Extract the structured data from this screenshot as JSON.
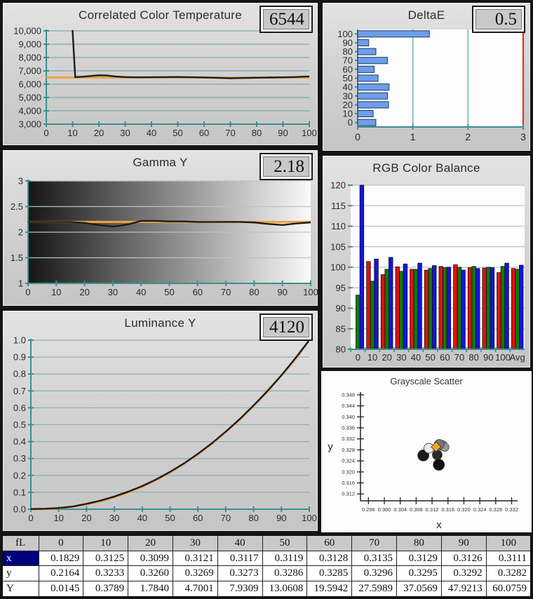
{
  "colors": {
    "axis_teal": "#3E8E8E",
    "target_orange": "#F2A33C",
    "measured_black": "#1C1C1C",
    "limit_red": "#E03434",
    "deltae_bar_blue": "#6D9EE8",
    "selected_row_navy": "#00007E"
  },
  "chart_data": [
    {
      "id": "cct",
      "type": "line",
      "title": "Correlated Color Temperature",
      "value": "6544",
      "xlabel": "",
      "ylabel": "",
      "xlim": [
        0,
        100
      ],
      "ylim": [
        3000,
        10000
      ],
      "xticks": [
        0,
        10,
        20,
        30,
        40,
        50,
        60,
        70,
        80,
        90,
        100
      ],
      "yticks": [
        {
          "v": 3000,
          "label": "3,000"
        },
        {
          "v": 4000,
          "label": "4,000"
        },
        {
          "v": 5000,
          "label": "5,000"
        },
        {
          "v": 6000,
          "label": "6,000"
        },
        {
          "v": 7000,
          "label": "7,000"
        },
        {
          "v": 8000,
          "label": "8,000"
        },
        {
          "v": 9000,
          "label": "9,000"
        },
        {
          "v": 10000,
          "label": "10,000"
        }
      ],
      "series": [
        {
          "name": "target",
          "color": "#F2A33C",
          "width": 3,
          "points": [
            [
              0,
              6500
            ],
            [
              100,
              6500
            ]
          ]
        },
        {
          "name": "measured",
          "color": "#1C1C1C",
          "width": 2.4,
          "points": [
            [
              10,
              10000
            ],
            [
              11,
              6530
            ],
            [
              14,
              6560
            ],
            [
              17,
              6615
            ],
            [
              20,
              6670
            ],
            [
              23,
              6655
            ],
            [
              26,
              6580
            ],
            [
              30,
              6530
            ],
            [
              35,
              6515
            ],
            [
              40,
              6525
            ],
            [
              45,
              6532
            ],
            [
              50,
              6535
            ],
            [
              55,
              6522
            ],
            [
              60,
              6505
            ],
            [
              65,
              6475
            ],
            [
              70,
              6445
            ],
            [
              75,
              6462
            ],
            [
              80,
              6485
            ],
            [
              85,
              6500
            ],
            [
              90,
              6515
            ],
            [
              95,
              6535
            ],
            [
              100,
              6580
            ]
          ]
        }
      ]
    },
    {
      "id": "deltae",
      "type": "hbar",
      "title": "DeltaE",
      "value": "0.5",
      "xlim": [
        0,
        3
      ],
      "xticks": [
        0,
        1,
        2,
        3
      ],
      "categories": [
        "100",
        "90",
        "80",
        "70",
        "60",
        "50",
        "40",
        "30",
        "20",
        "10",
        "0"
      ],
      "values": [
        1.3,
        0.2,
        0.33,
        0.54,
        0.3,
        0.37,
        0.57,
        0.54,
        0.56,
        0.28,
        0.33
      ],
      "bar_color": "#6D9EE8",
      "bar_border": "#1F3A66",
      "limit": {
        "value": 3,
        "color": "#E03434"
      }
    },
    {
      "id": "gamma",
      "type": "line",
      "title": "Gamma Y",
      "value": "2.18",
      "xlabel": "",
      "ylabel": "",
      "xlim": [
        0,
        100
      ],
      "ylim": [
        1,
        3
      ],
      "xticks": [
        0,
        10,
        20,
        30,
        40,
        50,
        60,
        70,
        80,
        90,
        100
      ],
      "yticks": [
        {
          "v": 1,
          "label": "1"
        },
        {
          "v": 1.5,
          "label": "1.5"
        },
        {
          "v": 2,
          "label": "2"
        },
        {
          "v": 2.5,
          "label": "2.5"
        },
        {
          "v": 3,
          "label": "3"
        }
      ],
      "background": "black-to-white-gradient",
      "series": [
        {
          "name": "target",
          "color": "#F2A33C",
          "width": 3,
          "points": [
            [
              0,
              2.2
            ],
            [
              100,
              2.2
            ]
          ]
        },
        {
          "name": "measured",
          "color": "#1C1C1C",
          "width": 2.4,
          "points": [
            [
              0,
              2.2
            ],
            [
              5,
              2.2
            ],
            [
              10,
              2.2
            ],
            [
              15,
              2.2
            ],
            [
              20,
              2.18
            ],
            [
              25,
              2.14
            ],
            [
              30,
              2.11
            ],
            [
              33,
              2.13
            ],
            [
              36,
              2.16
            ],
            [
              40,
              2.22
            ],
            [
              45,
              2.22
            ],
            [
              50,
              2.21
            ],
            [
              55,
              2.21
            ],
            [
              60,
              2.2
            ],
            [
              65,
              2.2
            ],
            [
              70,
              2.2
            ],
            [
              75,
              2.2
            ],
            [
              80,
              2.19
            ],
            [
              85,
              2.16
            ],
            [
              90,
              2.14
            ],
            [
              95,
              2.17
            ],
            [
              100,
              2.19
            ]
          ]
        }
      ]
    },
    {
      "id": "rgb",
      "type": "grouped-bar",
      "title": "RGB Color Balance",
      "ylim": [
        80,
        120
      ],
      "yticks": [
        {
          "v": 80,
          "label": "80"
        },
        {
          "v": 85,
          "label": "85"
        },
        {
          "v": 90,
          "label": "90"
        },
        {
          "v": 95,
          "label": "95"
        },
        {
          "v": 100,
          "label": "100"
        },
        {
          "v": 105,
          "label": "105"
        },
        {
          "v": 110,
          "label": "110"
        },
        {
          "v": 115,
          "label": "115"
        },
        {
          "v": 120,
          "label": "120"
        }
      ],
      "categories": [
        "0",
        "10",
        "20",
        "30",
        "40",
        "50",
        "60",
        "70",
        "80",
        "90",
        "100",
        "Avg"
      ],
      "series": [
        {
          "name": "red",
          "color": "#E01010",
          "values": [
            null,
            101.4,
            98.2,
            100.1,
            99.5,
            99.3,
            100.2,
            100.6,
            99.9,
            99.8,
            98.7,
            99.7
          ]
        },
        {
          "name": "green",
          "color": "#0E7A0E",
          "values": [
            93.2,
            96.6,
            99.5,
            99.0,
            99.5,
            99.7,
            99.9,
            100.0,
            100.2,
            100.0,
            100.2,
            99.5
          ]
        },
        {
          "name": "blue",
          "color": "#1414E0",
          "values": [
            120,
            102.0,
            102.4,
            100.8,
            101.0,
            100.4,
            100.0,
            99.3,
            99.7,
            99.9,
            101.0,
            100.5
          ]
        }
      ]
    },
    {
      "id": "luminance",
      "type": "line",
      "title": "Luminance Y",
      "value": "4120",
      "xlabel": "",
      "ylabel": "",
      "xlim": [
        0,
        100
      ],
      "ylim": [
        0,
        1
      ],
      "xticks": [
        0,
        10,
        20,
        30,
        40,
        50,
        60,
        70,
        80,
        90,
        100
      ],
      "yticks": [
        {
          "v": 0,
          "label": "0.0"
        },
        {
          "v": 0.1,
          "label": "0.1"
        },
        {
          "v": 0.2,
          "label": "0.2"
        },
        {
          "v": 0.3,
          "label": "0.3"
        },
        {
          "v": 0.4,
          "label": "0.4"
        },
        {
          "v": 0.5,
          "label": "0.5"
        },
        {
          "v": 0.6,
          "label": "0.6"
        },
        {
          "v": 0.7,
          "label": "0.7"
        },
        {
          "v": 0.8,
          "label": "0.8"
        },
        {
          "v": 0.9,
          "label": "0.9"
        },
        {
          "v": 1.0,
          "label": "1.0"
        }
      ],
      "series": [
        {
          "name": "target",
          "color": "#F2A33C",
          "width": 3,
          "points": [
            [
              0,
              0
            ],
            [
              5,
              0.0014
            ],
            [
              10,
              0.0063
            ],
            [
              15,
              0.0152
            ],
            [
              20,
              0.0289
            ],
            [
              25,
              0.0472
            ],
            [
              30,
              0.0707
            ],
            [
              35,
              0.0995
            ],
            [
              40,
              0.1334
            ],
            [
              45,
              0.1729
            ],
            [
              50,
              0.2176
            ],
            [
              55,
              0.2684
            ],
            [
              60,
              0.3254
            ],
            [
              65,
              0.3869
            ],
            [
              70,
              0.4567
            ],
            [
              75,
              0.5289
            ],
            [
              80,
              0.6124
            ],
            [
              85,
              0.6949
            ],
            [
              90,
              0.7925
            ],
            [
              95,
              0.8857
            ],
            [
              100,
              1.0
            ]
          ]
        },
        {
          "name": "measured",
          "color": "#1C1C1C",
          "width": 2.4,
          "points": [
            [
              0,
              0.001
            ],
            [
              5,
              0.003
            ],
            [
              10,
              0.007
            ],
            [
              15,
              0.016
            ],
            [
              20,
              0.032
            ],
            [
              25,
              0.051
            ],
            [
              30,
              0.075
            ],
            [
              35,
              0.104
            ],
            [
              40,
              0.137
            ],
            [
              45,
              0.176
            ],
            [
              50,
              0.221
            ],
            [
              55,
              0.271
            ],
            [
              60,
              0.328
            ],
            [
              65,
              0.39
            ],
            [
              70,
              0.459
            ],
            [
              75,
              0.533
            ],
            [
              80,
              0.614
            ],
            [
              85,
              0.7
            ],
            [
              90,
              0.792
            ],
            [
              95,
              0.893
            ],
            [
              100,
              1.0
            ]
          ]
        }
      ]
    },
    {
      "id": "scatter",
      "type": "scatter",
      "title": "Grayscale Scatter",
      "xlabel": "x",
      "ylabel": "y",
      "xlim": [
        0.294,
        0.3335
      ],
      "ylim": [
        0.3095,
        0.349
      ],
      "xticks": [
        {
          "v": 0.296,
          "label": "0.296"
        },
        {
          "v": 0.3,
          "label": "0.300"
        },
        {
          "v": 0.304,
          "label": "0.304"
        },
        {
          "v": 0.308,
          "label": "0.308"
        },
        {
          "v": 0.312,
          "label": "0.312"
        },
        {
          "v": 0.316,
          "label": "0.316"
        },
        {
          "v": 0.32,
          "label": "0.320"
        },
        {
          "v": 0.324,
          "label": "0.324"
        },
        {
          "v": 0.328,
          "label": "0.328"
        },
        {
          "v": 0.332,
          "label": "0.332"
        }
      ],
      "yticks": [
        {
          "v": 0.312,
          "label": "0.312"
        },
        {
          "v": 0.316,
          "label": "0.316"
        },
        {
          "v": 0.32,
          "label": "0.320"
        },
        {
          "v": 0.324,
          "label": "0.324"
        },
        {
          "v": 0.328,
          "label": "0.328"
        },
        {
          "v": 0.332,
          "label": "0.332"
        },
        {
          "v": 0.336,
          "label": "0.336"
        },
        {
          "v": 0.34,
          "label": "0.340"
        },
        {
          "v": 0.344,
          "label": "0.344"
        },
        {
          "v": 0.348,
          "label": "0.348"
        }
      ],
      "points": [
        {
          "x": 0.3098,
          "y": 0.326,
          "type": "circle",
          "fill": "#1c1c1c",
          "r": 8
        },
        {
          "x": 0.3133,
          "y": 0.3262,
          "type": "circle",
          "fill": "#2a2a2a",
          "r": 7
        },
        {
          "x": 0.3137,
          "y": 0.3226,
          "type": "circle",
          "fill": "#111111",
          "r": 8
        },
        {
          "x": 0.3146,
          "y": 0.3296,
          "type": "circle",
          "fill": "#8a8a8a",
          "r": 7
        },
        {
          "x": 0.3152,
          "y": 0.329,
          "type": "circle",
          "fill": "#9a9a9a",
          "r": 6
        },
        {
          "x": 0.3138,
          "y": 0.33,
          "type": "circle",
          "fill": "#777777",
          "r": 7
        },
        {
          "x": 0.3112,
          "y": 0.3286,
          "type": "circle",
          "fill": "#e8e8e8",
          "r": 7
        },
        {
          "x": 0.313,
          "y": 0.3291,
          "type": "diamond",
          "fill": "#F5A623",
          "r": 7
        }
      ]
    }
  ],
  "table": {
    "corner": "fL",
    "columns": [
      "0",
      "10",
      "20",
      "30",
      "40",
      "50",
      "60",
      "70",
      "80",
      "90",
      "100"
    ],
    "rows": [
      {
        "header": "x",
        "selected": true,
        "values": [
          "0.1829",
          "0.3125",
          "0.3099",
          "0.3121",
          "0.3117",
          "0.3119",
          "0.3128",
          "0.3135",
          "0.3129",
          "0.3126",
          "0.3111"
        ]
      },
      {
        "header": "y",
        "selected": false,
        "values": [
          "0.2164",
          "0.3233",
          "0.3260",
          "0.3269",
          "0.3273",
          "0.3286",
          "0.3285",
          "0.3296",
          "0.3295",
          "0.3292",
          "0.3282"
        ]
      },
      {
        "header": "Y",
        "selected": false,
        "values": [
          "0.0145",
          "0.3789",
          "1.7840",
          "4.7001",
          "7.9309",
          "13.0608",
          "19.5942",
          "27.5989",
          "37.0569",
          "47.9213",
          "60.0759"
        ]
      }
    ]
  }
}
